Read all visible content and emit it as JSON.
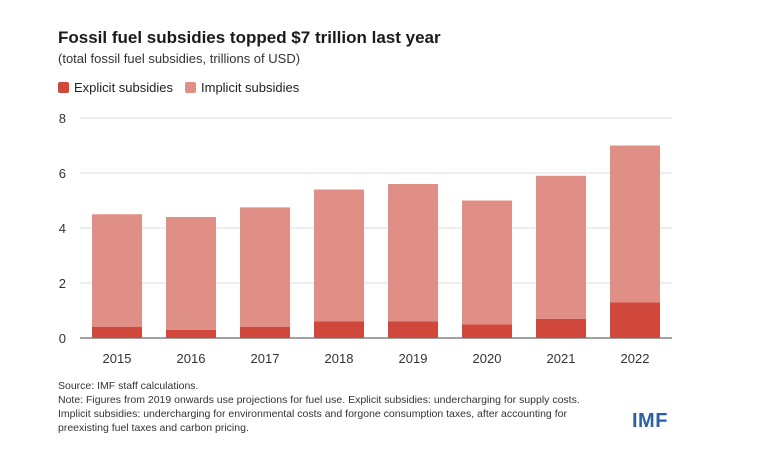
{
  "title": "Fossil fuel subsidies topped $7 trillion last year",
  "subtitle": "(total fossil fuel subsidies, trillions of USD)",
  "colors": {
    "explicit": "#d0473b",
    "implicit": "#e08f86",
    "grid": "#dddddd",
    "axis": "#444444",
    "brand": "#2b5fa8"
  },
  "legend": {
    "explicit": "Explicit subsidies",
    "implicit": "Implicit subsidies"
  },
  "chart_data": {
    "type": "bar",
    "stacked": true,
    "categories": [
      "2015",
      "2016",
      "2017",
      "2018",
      "2019",
      "2020",
      "2021",
      "2022"
    ],
    "series": [
      {
        "name": "Explicit subsidies",
        "values": [
          0.4,
          0.3,
          0.4,
          0.6,
          0.6,
          0.5,
          0.7,
          1.3
        ]
      },
      {
        "name": "Implicit subsidies",
        "values": [
          4.1,
          4.1,
          4.35,
          4.8,
          5.0,
          4.5,
          5.2,
          5.7
        ]
      }
    ],
    "yticks": [
      "0",
      "2",
      "4",
      "6",
      "8"
    ],
    "ylim": [
      0,
      8
    ],
    "grid": true,
    "legend_position": "top-left"
  },
  "footnotes": {
    "source": "Source: IMF staff calculations.",
    "note1": "Note: Figures from 2019 onwards use projections for fuel use. Explicit subsidies: undercharging for supply costs.",
    "note2": "Implicit subsidies: undercharging for environmental costs and forgone consumption taxes, after accounting for",
    "note3": "preexisting fuel taxes and carbon pricing."
  },
  "logo": "IMF"
}
